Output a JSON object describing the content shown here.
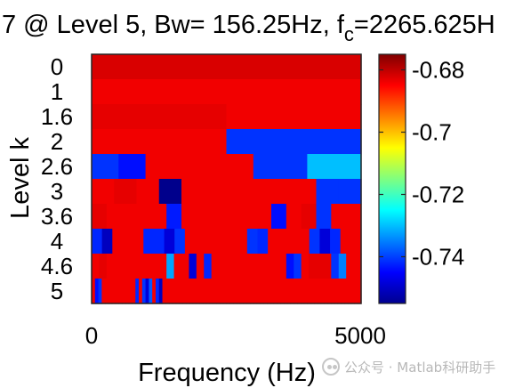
{
  "chart_data": {
    "type": "heatmap",
    "title_visible": "7 @ Level 5, Bw= 156.25Hz, f",
    "title_sub": "c",
    "title_tail": "=2265.625H",
    "xlabel": "Frequency (Hz)",
    "ylabel": "Level k",
    "xlim": [
      0,
      5000
    ],
    "x_ticks": [
      "0",
      "5000"
    ],
    "y_ticks": [
      "0",
      "1",
      "1.6",
      "2",
      "2.6",
      "3",
      "3.6",
      "4",
      "4.6",
      "5"
    ],
    "colorbar": {
      "colormap": "jet",
      "clim": [
        -0.755,
        -0.675
      ],
      "ticks": [
        "-0.68",
        "-0.7",
        "-0.72",
        "-0.74"
      ],
      "tick_values": [
        -0.68,
        -0.7,
        -0.72,
        -0.74
      ]
    },
    "rows": [
      {
        "level": "0",
        "cells": [
          -0.682
        ]
      },
      {
        "level": "1",
        "cells": [
          -0.684
        ]
      },
      {
        "level": "1.6",
        "cells": [
          -0.683,
          -0.684
        ]
      },
      {
        "level": "2",
        "cells": [
          -0.684,
          -0.684,
          -0.741,
          -0.741
        ]
      },
      {
        "level": "2.6",
        "cells": [
          -0.741,
          -0.744,
          -0.684,
          -0.684,
          -0.684,
          -0.684,
          -0.741,
          -0.741,
          -0.73,
          -0.73
        ]
      },
      {
        "level": "3",
        "cells": [
          -0.684,
          -0.683,
          -0.684,
          -0.754,
          -0.684,
          -0.684,
          -0.684,
          -0.684,
          -0.684,
          -0.684,
          -0.741,
          -0.741
        ]
      },
      {
        "level": "3.6",
        "cells": [
          -0.683,
          -0.684,
          -0.684,
          -0.684,
          -0.684,
          -0.743,
          -0.684,
          -0.684,
          -0.684,
          -0.684,
          -0.684,
          -0.684,
          -0.744,
          -0.684,
          -0.683,
          -0.741,
          -0.684,
          -0.684
        ]
      },
      {
        "level": "4",
        "cells": [
          -0.742,
          -0.75,
          -0.684,
          -0.684,
          -0.684,
          -0.742,
          -0.742,
          -0.748,
          -0.741,
          -0.684,
          -0.684,
          -0.684,
          -0.684,
          -0.684,
          -0.684,
          -0.741,
          -0.742,
          -0.684,
          -0.684,
          -0.684,
          -0.684,
          -0.741,
          -0.748,
          -0.742,
          -0.684,
          -0.684
        ]
      },
      {
        "level": "4.6",
        "cells": [
          -0.684,
          -0.683,
          -0.684,
          -0.684,
          -0.684,
          -0.684,
          -0.684,
          -0.684,
          -0.684,
          -0.684,
          -0.732,
          -0.684,
          -0.684,
          -0.748,
          -0.684,
          -0.742,
          -0.684,
          -0.684,
          -0.684,
          -0.684,
          -0.684,
          -0.684,
          -0.684,
          -0.684,
          -0.684,
          -0.684,
          -0.744,
          -0.741,
          -0.684,
          -0.683,
          -0.683,
          -0.683,
          -0.741,
          -0.735,
          -0.684,
          -0.684
        ]
      },
      {
        "level": "5",
        "cells": [
          -0.684,
          -0.744,
          -0.741,
          -0.684,
          -0.684,
          -0.684,
          -0.684,
          -0.684,
          -0.684,
          -0.684,
          -0.684,
          -0.684,
          -0.684,
          -0.742,
          -0.684,
          -0.741,
          -0.748,
          -0.738,
          -0.684,
          -0.742,
          -0.75,
          -0.684,
          -0.684,
          -0.684,
          -0.684,
          -0.684,
          -0.684,
          -0.684,
          -0.684,
          -0.684,
          -0.684,
          -0.684,
          -0.684,
          -0.684,
          -0.684,
          -0.684,
          -0.684,
          -0.684,
          -0.684,
          -0.684,
          -0.684,
          -0.684,
          -0.684,
          -0.684,
          -0.684,
          -0.684,
          -0.684,
          -0.684,
          -0.684,
          -0.684,
          -0.684,
          -0.684,
          -0.684,
          -0.684,
          -0.684,
          -0.684,
          -0.684,
          -0.684,
          -0.684,
          -0.684,
          -0.684,
          -0.684,
          -0.684,
          -0.684,
          -0.684,
          -0.684,
          -0.684,
          -0.684,
          -0.684,
          -0.684,
          -0.684,
          -0.684,
          -0.684,
          -0.684,
          -0.684,
          -0.684,
          -0.684,
          -0.684,
          -0.684,
          -0.684
        ]
      }
    ]
  },
  "watermark": {
    "icon": "wechat-icon",
    "text": "公众号 · Matlab科研助手"
  }
}
